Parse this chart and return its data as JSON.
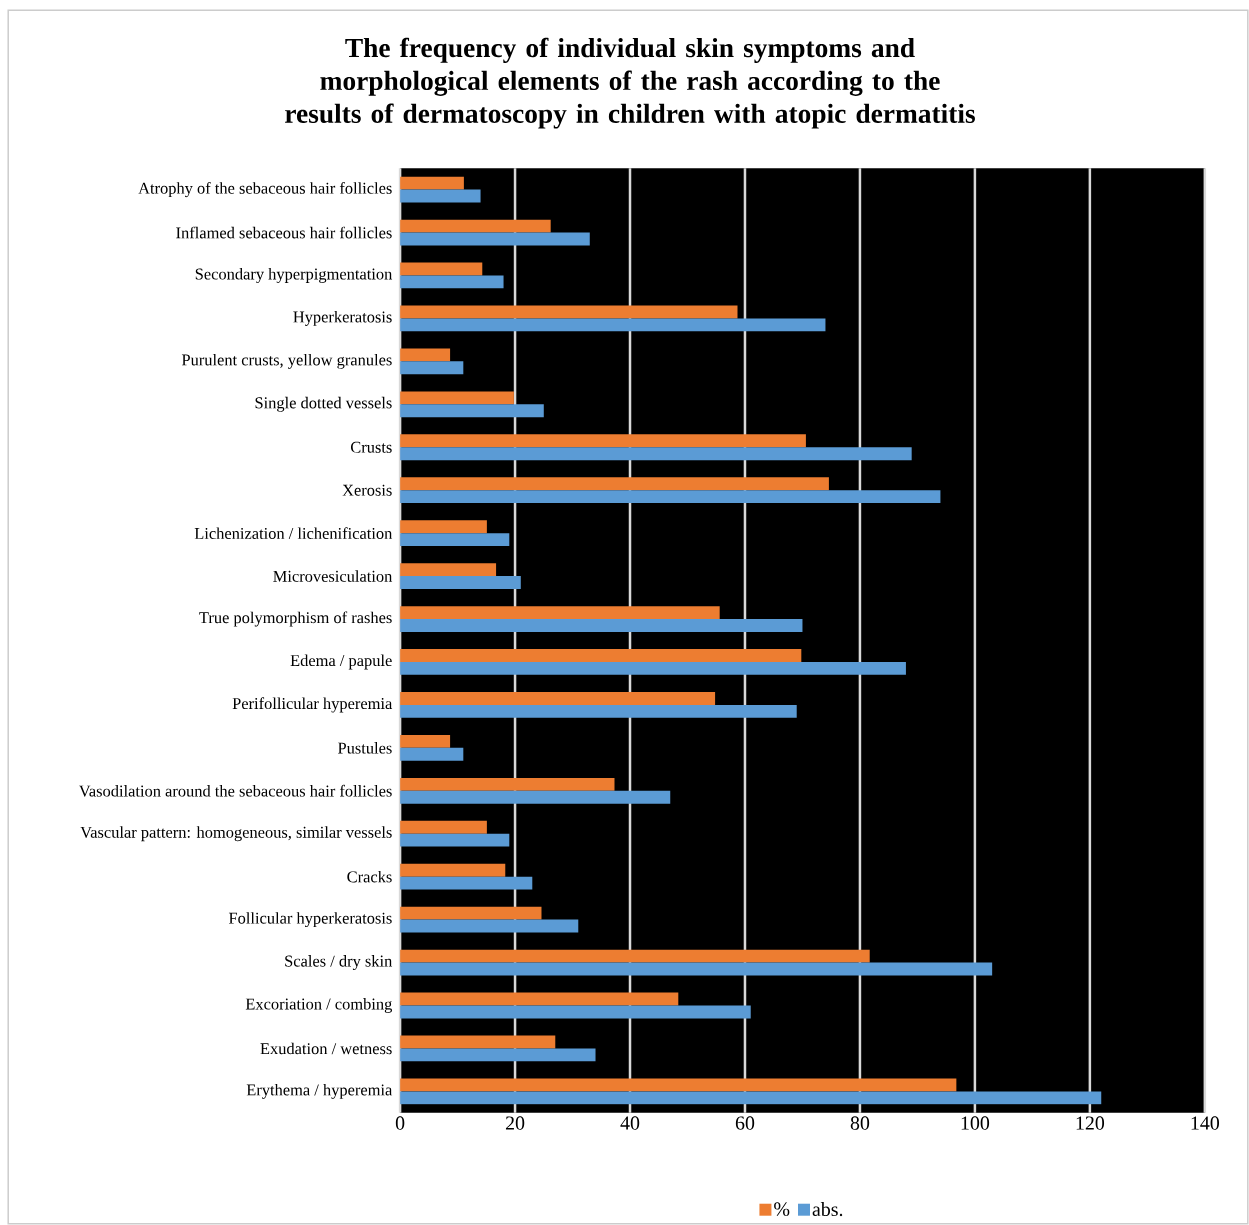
{
  "chart_data": {
    "type": "bar",
    "orientation": "horizontal",
    "title": "The frequency of individual skin symptoms and morphological elements of the rash according to the results of dermatoscopy in children with atopic dermatitis",
    "categories": [
      "Atrophy of the sebaceous hair follicles",
      "Inflamed sebaceous hair follicles",
      "Secondary hyperpigmentation",
      "Hyperkeratosis",
      "Purulent crusts, yellow granules",
      "Single dotted vessels",
      "Crusts",
      "Xerosis",
      "Lichenization / lichenification",
      "Microvesiculation",
      "True polymorphism of rashes",
      "Edema / papule",
      "Perifollicular hyperemia",
      "Pustules",
      "Vasodilation around the sebaceous hair follicles",
      "Vascular pattern: homogeneous, similar vessels",
      "Cracks",
      "Follicular hyperkeratosis",
      "Scales / dry skin",
      "Excoriation / combing",
      "Exudation / wetness",
      "Erythema / hyperemia"
    ],
    "series": [
      {
        "name": "%",
        "color": "#ed7d31",
        "values": [
          11.1,
          26.2,
          14.3,
          58.7,
          8.7,
          19.8,
          70.6,
          74.6,
          15.1,
          16.7,
          55.6,
          69.8,
          54.8,
          8.7,
          37.3,
          15.1,
          18.3,
          24.6,
          81.7,
          48.4,
          27.0,
          96.8
        ]
      },
      {
        "name": "abs.",
        "color": "#5b9bd5",
        "values": [
          14,
          33,
          18,
          74,
          11,
          25,
          89,
          94,
          19,
          21,
          70,
          88,
          69,
          11,
          47,
          19,
          23,
          31,
          103,
          61,
          34,
          122
        ]
      }
    ],
    "xlim": [
      0,
      140
    ],
    "xticks": [
      0,
      20,
      40,
      60,
      80,
      100,
      120,
      140
    ],
    "grid": "x",
    "legend": "bottom"
  }
}
